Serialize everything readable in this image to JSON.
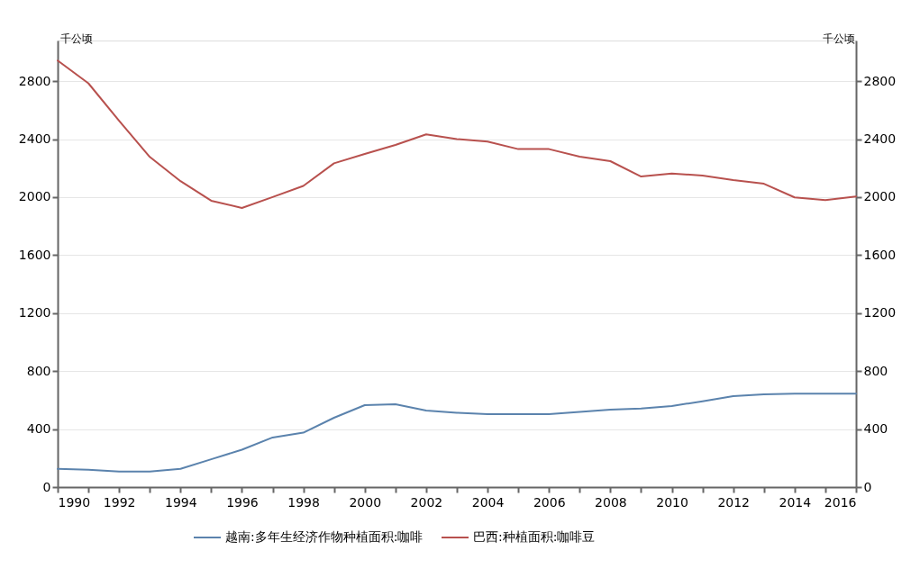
{
  "chart_data": {
    "type": "line",
    "ylabel": "千公顷",
    "y2label": "千公顷",
    "x": [
      1990,
      1991,
      1992,
      1993,
      1994,
      1995,
      1996,
      1997,
      1998,
      1999,
      2000,
      2001,
      2002,
      2003,
      2004,
      2005,
      2006,
      2007,
      2008,
      2009,
      2010,
      2011,
      2012,
      2013,
      2014,
      2015,
      2016
    ],
    "series": [
      {
        "name": "越南:多年生经济作物种植面积:咖啡",
        "color": "#5b83ad",
        "values": [
          125,
          120,
          107,
          107,
          126,
          192,
          258,
          342,
          375,
          478,
          565,
          571,
          528,
          513,
          503,
          503,
          503,
          518,
          534,
          542,
          559,
          592,
          627,
          639,
          645,
          645,
          645
        ]
      },
      {
        "name": "巴西:种植面积:咖啡豆",
        "color": "#b8514e",
        "axis": "y2",
        "values": [
          2942,
          2785,
          2527,
          2277,
          2110,
          1975,
          1925,
          2000,
          2077,
          2233,
          2298,
          2360,
          2433,
          2400,
          2383,
          2331,
          2331,
          2279,
          2248,
          2142,
          2163,
          2148,
          2117,
          2092,
          1998,
          1979,
          2004
        ]
      }
    ],
    "xlim": [
      1990,
      2016
    ],
    "xticks": [
      1990,
      {
        "value": 1991,
        "label": null
      },
      1992,
      {
        "value": 1993,
        "label": null
      },
      1994,
      {
        "value": 1995,
        "label": null
      },
      1996,
      {
        "value": 1997,
        "label": null
      },
      1998,
      {
        "value": 1999,
        "label": null
      },
      2000,
      {
        "value": 2001,
        "label": null
      },
      2002,
      {
        "value": 2003,
        "label": null
      },
      2004,
      {
        "value": 2005,
        "label": null
      },
      2006,
      {
        "value": 2007,
        "label": null
      },
      2008,
      {
        "value": 2009,
        "label": null
      },
      2010,
      {
        "value": 2011,
        "label": null
      },
      2012,
      {
        "value": 2013,
        "label": null
      },
      2014,
      {
        "value": 2015,
        "label": null
      },
      2016
    ],
    "ylim": [
      0,
      3080
    ],
    "yticks": [
      0,
      400,
      800,
      1200,
      1600,
      2000,
      2400,
      2800
    ],
    "y2lim": [
      0,
      3080
    ],
    "y2ticks": [
      0,
      400,
      800,
      1200,
      1600,
      2000,
      2400,
      2800
    ],
    "grid": "y",
    "legend": "bottom"
  }
}
